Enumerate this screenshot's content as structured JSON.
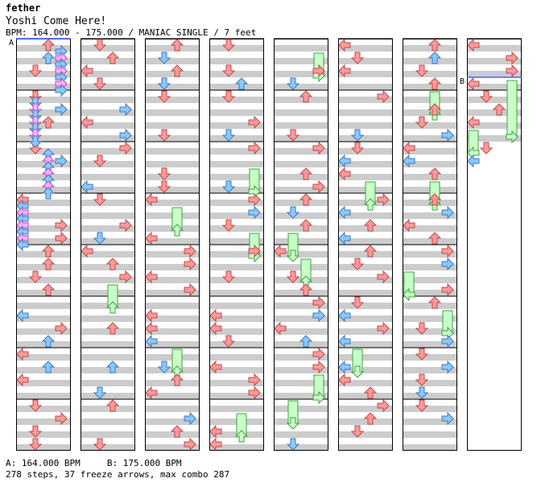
{
  "header": {
    "artist": "fether",
    "title": "Yoshi Come Here!",
    "bpm_line": "BPM: 164.000 - 175.000 / MANIAC SINGLE / 7 feet"
  },
  "footer": {
    "bpm_legend_a": "A: 164.000 BPM",
    "bpm_legend_b": "B: 175.000 BPM",
    "stats": "278 steps, 37 freeze arrows, max combo 287"
  },
  "bpm_markers": {
    "a": "A",
    "b": "B"
  },
  "colors": {
    "red": "#ff9a9a",
    "red_stroke": "#c04848",
    "blue": "#8cc8ff",
    "blue_stroke": "#3a78c0",
    "pink": "#ffb0ff",
    "pink_stroke": "#b050b0",
    "green": "#c8ffc8",
    "green_stroke": "#40a040",
    "band": "#cccccc",
    "line": "#000000"
  }
}
